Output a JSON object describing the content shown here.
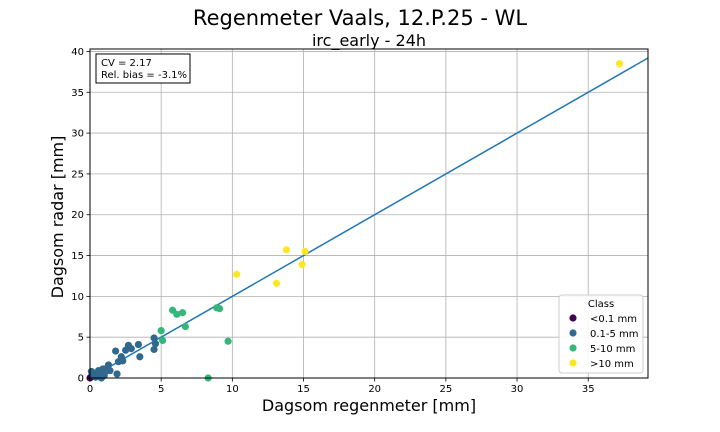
{
  "chart_data": {
    "type": "scatter",
    "title": "Regenmeter Vaals, 12.P.25 - WL",
    "subtitle": "irc_early - 24h",
    "xlabel": "Dagsom regenmeter [mm]",
    "ylabel": "Dagsom radar [mm]",
    "xlim": [
      0,
      39.2
    ],
    "ylim": [
      0,
      40.3
    ],
    "xticks": [
      "0",
      "5",
      "10",
      "15",
      "20",
      "25",
      "30",
      "35"
    ],
    "yticks": [
      "0",
      "5",
      "10",
      "15",
      "20",
      "25",
      "30",
      "35",
      "40"
    ],
    "grid": true,
    "stats": {
      "cv": "CV = 2.17",
      "bias": "Rel. bias = -3.1%"
    },
    "fit_line": {
      "slope": 1.0,
      "intercept": 0.0
    },
    "legend": {
      "title": "Class",
      "placement": "lower-right",
      "entries": [
        {
          "label": "<0.1 mm",
          "color": "#440154"
        },
        {
          "label": "0.1-5 mm",
          "color": "#31688e"
        },
        {
          "label": "5-10 mm",
          "color": "#35b779"
        },
        {
          "label": ">10 mm",
          "color": "#fde725"
        }
      ]
    },
    "fit_color": "#1f77b4",
    "series": [
      {
        "name": "<0.1 mm",
        "color": "#440154",
        "points": [
          [
            0.0,
            0.0
          ],
          [
            0.05,
            0.1
          ]
        ]
      },
      {
        "name": "0.1-5 mm",
        "color": "#31688e",
        "points": [
          [
            0.1,
            0.8
          ],
          [
            0.2,
            0.3
          ],
          [
            0.3,
            0.6
          ],
          [
            0.4,
            0.1
          ],
          [
            0.5,
            0.2
          ],
          [
            0.6,
            0.9
          ],
          [
            0.7,
            0.4
          ],
          [
            0.8,
            0.0
          ],
          [
            0.9,
            1.1
          ],
          [
            1.0,
            0.3
          ],
          [
            1.1,
            0.8
          ],
          [
            1.2,
            1.2
          ],
          [
            1.3,
            1.6
          ],
          [
            1.4,
            0.9
          ],
          [
            1.8,
            3.3
          ],
          [
            1.9,
            0.5
          ],
          [
            2.0,
            2.0
          ],
          [
            2.2,
            2.6
          ],
          [
            2.3,
            2.1
          ],
          [
            2.5,
            3.4
          ],
          [
            2.7,
            4.0
          ],
          [
            2.9,
            3.6
          ],
          [
            3.4,
            4.1
          ],
          [
            3.5,
            2.6
          ],
          [
            4.5,
            3.5
          ],
          [
            4.5,
            4.9
          ],
          [
            4.6,
            4.2
          ]
        ]
      },
      {
        "name": "5-10 mm",
        "color": "#35b779",
        "points": [
          [
            5.0,
            5.8
          ],
          [
            5.1,
            4.6
          ],
          [
            5.8,
            8.3
          ],
          [
            6.1,
            7.8
          ],
          [
            6.5,
            8.0
          ],
          [
            6.7,
            6.3
          ],
          [
            8.3,
            0.0
          ],
          [
            8.9,
            8.6
          ],
          [
            9.1,
            8.5
          ],
          [
            9.7,
            4.5
          ]
        ]
      },
      {
        "name": ">10 mm",
        "color": "#fde725",
        "points": [
          [
            10.3,
            12.7
          ],
          [
            13.1,
            11.6
          ],
          [
            13.8,
            15.7
          ],
          [
            14.9,
            13.9
          ],
          [
            15.1,
            15.5
          ],
          [
            37.2,
            38.5
          ]
        ]
      }
    ]
  }
}
